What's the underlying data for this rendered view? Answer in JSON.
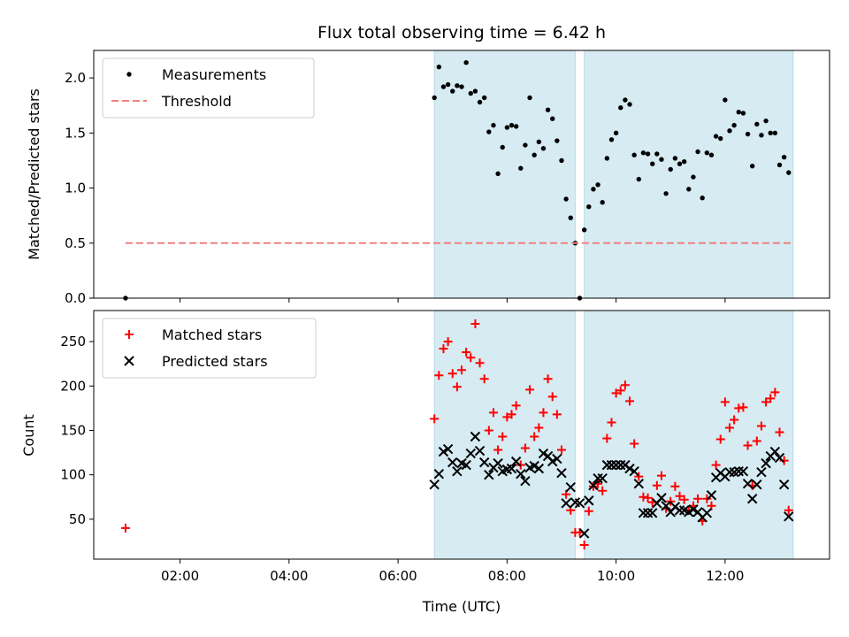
{
  "chart_data": [
    {
      "type": "scatter",
      "title": "Flux total observing time = 6.42 h",
      "xlabel": "",
      "ylabel": "Matched/Predicted stars",
      "xlim": [
        "00:25",
        "13:55"
      ],
      "ylim": [
        0,
        2.25
      ],
      "yticks": [
        "0.0",
        "0.5",
        "1.0",
        "1.5",
        "2.0"
      ],
      "legend": "upper-left",
      "shaded_spans": [
        [
          "06:40",
          "09:15"
        ],
        [
          "09:25",
          "13:15"
        ]
      ],
      "shade_color": "#add8e6",
      "series": [
        {
          "name": "Measurements",
          "marker": "dot",
          "color": "#000000",
          "points": [
            [
              "01:00",
              0.0
            ],
            [
              "06:40",
              1.82
            ],
            [
              "06:45",
              2.1
            ],
            [
              "06:50",
              1.92
            ],
            [
              "06:55",
              1.94
            ],
            [
              "07:00",
              1.88
            ],
            [
              "07:05",
              1.93
            ],
            [
              "07:10",
              1.92
            ],
            [
              "07:15",
              2.14
            ],
            [
              "07:20",
              1.86
            ],
            [
              "07:25",
              1.88
            ],
            [
              "07:30",
              1.78
            ],
            [
              "07:35",
              1.82
            ],
            [
              "07:40",
              1.51
            ],
            [
              "07:45",
              1.57
            ],
            [
              "07:50",
              1.13
            ],
            [
              "07:55",
              1.37
            ],
            [
              "08:00",
              1.55
            ],
            [
              "08:05",
              1.57
            ],
            [
              "08:10",
              1.56
            ],
            [
              "08:15",
              1.18
            ],
            [
              "08:20",
              1.39
            ],
            [
              "08:25",
              1.82
            ],
            [
              "08:30",
              1.3
            ],
            [
              "08:35",
              1.42
            ],
            [
              "08:40",
              1.36
            ],
            [
              "08:45",
              1.71
            ],
            [
              "08:50",
              1.63
            ],
            [
              "08:55",
              1.43
            ],
            [
              "09:00",
              1.25
            ],
            [
              "09:05",
              0.9
            ],
            [
              "09:10",
              0.73
            ],
            [
              "09:15",
              0.5
            ],
            [
              "09:20",
              0.0
            ],
            [
              "09:25",
              0.62
            ],
            [
              "09:30",
              0.83
            ],
            [
              "09:35",
              0.99
            ],
            [
              "09:40",
              1.03
            ],
            [
              "09:45",
              0.87
            ],
            [
              "09:50",
              1.27
            ],
            [
              "09:55",
              1.44
            ],
            [
              "10:00",
              1.5
            ],
            [
              "10:05",
              1.73
            ],
            [
              "10:10",
              1.8
            ],
            [
              "10:15",
              1.76
            ],
            [
              "10:20",
              1.3
            ],
            [
              "10:25",
              1.08
            ],
            [
              "10:30",
              1.32
            ],
            [
              "10:35",
              1.31
            ],
            [
              "10:40",
              1.22
            ],
            [
              "10:45",
              1.31
            ],
            [
              "10:50",
              1.26
            ],
            [
              "10:55",
              0.95
            ],
            [
              "11:00",
              1.17
            ],
            [
              "11:05",
              1.27
            ],
            [
              "11:10",
              1.22
            ],
            [
              "11:15",
              1.24
            ],
            [
              "11:20",
              0.99
            ],
            [
              "11:25",
              1.1
            ],
            [
              "11:30",
              1.33
            ],
            [
              "11:35",
              0.91
            ],
            [
              "11:40",
              1.32
            ],
            [
              "11:45",
              1.3
            ],
            [
              "11:50",
              1.47
            ],
            [
              "11:55",
              1.45
            ],
            [
              "12:00",
              1.8
            ],
            [
              "12:05",
              1.52
            ],
            [
              "12:10",
              1.57
            ],
            [
              "12:15",
              1.69
            ],
            [
              "12:20",
              1.68
            ],
            [
              "12:25",
              1.49
            ],
            [
              "12:30",
              1.2
            ],
            [
              "12:35",
              1.58
            ],
            [
              "12:40",
              1.48
            ],
            [
              "12:45",
              1.61
            ],
            [
              "12:50",
              1.5
            ],
            [
              "12:55",
              1.5
            ],
            [
              "13:00",
              1.21
            ],
            [
              "13:05",
              1.28
            ],
            [
              "13:10",
              1.14
            ]
          ]
        },
        {
          "name": "Threshold",
          "marker": "dashed-line",
          "color": "#f08080",
          "points": [
            [
              "01:00",
              0.5
            ],
            [
              "13:15",
              0.5
            ]
          ]
        }
      ]
    },
    {
      "type": "scatter",
      "title": "",
      "xlabel": "Time (UTC)",
      "ylabel": "Count",
      "xlim": [
        "00:25",
        "13:55"
      ],
      "ylim": [
        5,
        285
      ],
      "yticks": [
        "50",
        "100",
        "150",
        "200",
        "250"
      ],
      "xticks": [
        "02:00",
        "04:00",
        "06:00",
        "08:00",
        "10:00",
        "12:00"
      ],
      "legend": "upper-left",
      "shaded_spans": [
        [
          "06:40",
          "09:15"
        ],
        [
          "09:25",
          "13:15"
        ]
      ],
      "shade_color": "#add8e6",
      "series": [
        {
          "name": "Matched stars",
          "marker": "plus",
          "color": "#ff0000",
          "points": [
            [
              "01:00",
              40
            ],
            [
              "06:40",
              163
            ],
            [
              "06:45",
              212
            ],
            [
              "06:50",
              242
            ],
            [
              "06:55",
              250
            ],
            [
              "07:00",
              214
            ],
            [
              "07:05",
              199
            ],
            [
              "07:10",
              218
            ],
            [
              "07:15",
              238
            ],
            [
              "07:20",
              232
            ],
            [
              "07:25",
              270
            ],
            [
              "07:30",
              226
            ],
            [
              "07:35",
              208
            ],
            [
              "07:40",
              150
            ],
            [
              "07:45",
              170
            ],
            [
              "07:50",
              128
            ],
            [
              "07:55",
              143
            ],
            [
              "08:00",
              165
            ],
            [
              "08:05",
              168
            ],
            [
              "08:10",
              178
            ],
            [
              "08:15",
              111
            ],
            [
              "08:20",
              130
            ],
            [
              "08:25",
              196
            ],
            [
              "08:30",
              143
            ],
            [
              "08:35",
              153
            ],
            [
              "08:40",
              170
            ],
            [
              "08:45",
              208
            ],
            [
              "08:50",
              188
            ],
            [
              "08:55",
              168
            ],
            [
              "09:00",
              128
            ],
            [
              "09:05",
              78
            ],
            [
              "09:10",
              60
            ],
            [
              "09:15",
              35
            ],
            [
              "09:20",
              35
            ],
            [
              "09:25",
              21
            ],
            [
              "09:30",
              59
            ],
            [
              "09:35",
              87
            ],
            [
              "09:40",
              90
            ],
            [
              "09:45",
              82
            ],
            [
              "09:50",
              141
            ],
            [
              "09:55",
              159
            ],
            [
              "10:00",
              192
            ],
            [
              "10:05",
              195
            ],
            [
              "10:10",
              201
            ],
            [
              "10:15",
              183
            ],
            [
              "10:20",
              135
            ],
            [
              "10:25",
              98
            ],
            [
              "10:30",
              75
            ],
            [
              "10:35",
              74
            ],
            [
              "10:40",
              69
            ],
            [
              "10:45",
              88
            ],
            [
              "10:50",
              99
            ],
            [
              "10:55",
              62
            ],
            [
              "11:00",
              70
            ],
            [
              "11:05",
              87
            ],
            [
              "11:10",
              76
            ],
            [
              "11:15",
              72
            ],
            [
              "11:20",
              60
            ],
            [
              "11:25",
              65
            ],
            [
              "11:30",
              73
            ],
            [
              "11:35",
              48
            ],
            [
              "11:40",
              73
            ],
            [
              "11:45",
              65
            ],
            [
              "11:50",
              111
            ],
            [
              "11:55",
              140
            ],
            [
              "12:00",
              182
            ],
            [
              "12:05",
              153
            ],
            [
              "12:10",
              162
            ],
            [
              "12:15",
              175
            ],
            [
              "12:20",
              176
            ],
            [
              "12:25",
              133
            ],
            [
              "12:30",
              88
            ],
            [
              "12:35",
              138
            ],
            [
              "12:40",
              155
            ],
            [
              "12:45",
              182
            ],
            [
              "12:50",
              186
            ],
            [
              "12:55",
              193
            ],
            [
              "13:00",
              148
            ],
            [
              "13:05",
              116
            ],
            [
              "13:10",
              60
            ]
          ]
        },
        {
          "name": "Predicted stars",
          "marker": "x",
          "color": "#000000",
          "points": [
            [
              "06:40",
              89
            ],
            [
              "06:45",
              101
            ],
            [
              "06:50",
              126
            ],
            [
              "06:55",
              129
            ],
            [
              "07:00",
              114
            ],
            [
              "07:05",
              104
            ],
            [
              "07:10",
              113
            ],
            [
              "07:15",
              111
            ],
            [
              "07:20",
              124
            ],
            [
              "07:25",
              143
            ],
            [
              "07:30",
              127
            ],
            [
              "07:35",
              114
            ],
            [
              "07:40",
              100
            ],
            [
              "07:45",
              108
            ],
            [
              "07:50",
              113
            ],
            [
              "07:55",
              104
            ],
            [
              "08:00",
              106
            ],
            [
              "08:05",
              107
            ],
            [
              "08:10",
              115
            ],
            [
              "08:15",
              101
            ],
            [
              "08:20",
              93
            ],
            [
              "08:25",
              108
            ],
            [
              "08:30",
              110
            ],
            [
              "08:35",
              107
            ],
            [
              "08:40",
              124
            ],
            [
              "08:45",
              121
            ],
            [
              "08:50",
              115
            ],
            [
              "08:55",
              118
            ],
            [
              "09:00",
              102
            ],
            [
              "09:05",
              68
            ],
            [
              "09:10",
              86
            ],
            [
              "09:15",
              69
            ],
            [
              "09:20",
              68
            ],
            [
              "09:25",
              34
            ],
            [
              "09:30",
              71
            ],
            [
              "09:35",
              88
            ],
            [
              "09:40",
              96
            ],
            [
              "09:45",
              96
            ],
            [
              "09:50",
              111
            ],
            [
              "09:55",
              111
            ],
            [
              "10:00",
              111
            ],
            [
              "10:05",
              111
            ],
            [
              "10:10",
              111
            ],
            [
              "10:15",
              107
            ],
            [
              "10:20",
              104
            ],
            [
              "10:25",
              90
            ],
            [
              "10:30",
              57
            ],
            [
              "10:35",
              57
            ],
            [
              "10:40",
              57
            ],
            [
              "10:45",
              68
            ],
            [
              "10:50",
              74
            ],
            [
              "10:55",
              65
            ],
            [
              "11:00",
              58
            ],
            [
              "11:05",
              64
            ],
            [
              "11:10",
              60
            ],
            [
              "11:15",
              60
            ],
            [
              "11:20",
              58
            ],
            [
              "11:25",
              61
            ],
            [
              "11:30",
              58
            ],
            [
              "11:35",
              52
            ],
            [
              "11:40",
              57
            ],
            [
              "11:45",
              77
            ],
            [
              "11:50",
              97
            ],
            [
              "11:55",
              102
            ],
            [
              "12:00",
              98
            ],
            [
              "12:05",
              103
            ],
            [
              "12:10",
              103
            ],
            [
              "12:15",
              104
            ],
            [
              "12:20",
              104
            ],
            [
              "12:25",
              90
            ],
            [
              "12:30",
              73
            ],
            [
              "12:35",
              89
            ],
            [
              "12:40",
              103
            ],
            [
              "12:45",
              113
            ],
            [
              "12:50",
              121
            ],
            [
              "12:55",
              126
            ],
            [
              "13:00",
              119
            ],
            [
              "13:05",
              89
            ],
            [
              "13:10",
              53
            ]
          ]
        }
      ]
    }
  ]
}
